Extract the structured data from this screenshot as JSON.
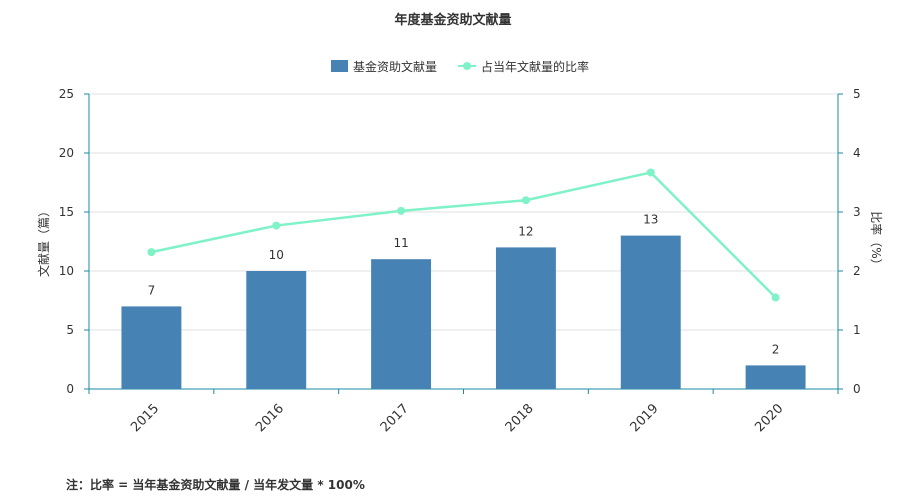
{
  "chart_data": {
    "type": "bar",
    "title": "年度基金资助文献量",
    "categories": [
      "2015",
      "2016",
      "2017",
      "2018",
      "2019",
      "2020"
    ],
    "series": [
      {
        "name": "基金资助文献量",
        "kind": "bar",
        "axis": "left",
        "color": "#4682b4",
        "values": [
          7,
          10,
          11,
          12,
          13,
          2
        ]
      },
      {
        "name": "占当年文献量的比率",
        "kind": "line",
        "axis": "right",
        "color": "#7ff2c8",
        "values": [
          2.32,
          2.77,
          3.02,
          3.2,
          3.67,
          1.55
        ]
      }
    ],
    "ylabel": "文献量（篇）",
    "ylim": [
      0,
      25
    ],
    "yticks": [
      0,
      5,
      10,
      15,
      20,
      25
    ],
    "y2label": "比率（%）",
    "y2lim": [
      0,
      5
    ],
    "y2ticks": [
      0,
      1,
      2,
      3,
      4,
      5
    ],
    "legend_position": "top-center",
    "grid": true
  },
  "note": "注：比率 = 当年基金资助文献量 / 当年发文量 * 100%",
  "colors": {
    "axis": "#1a8aa6",
    "grid": "#e0e0e0",
    "text": "#333333"
  }
}
